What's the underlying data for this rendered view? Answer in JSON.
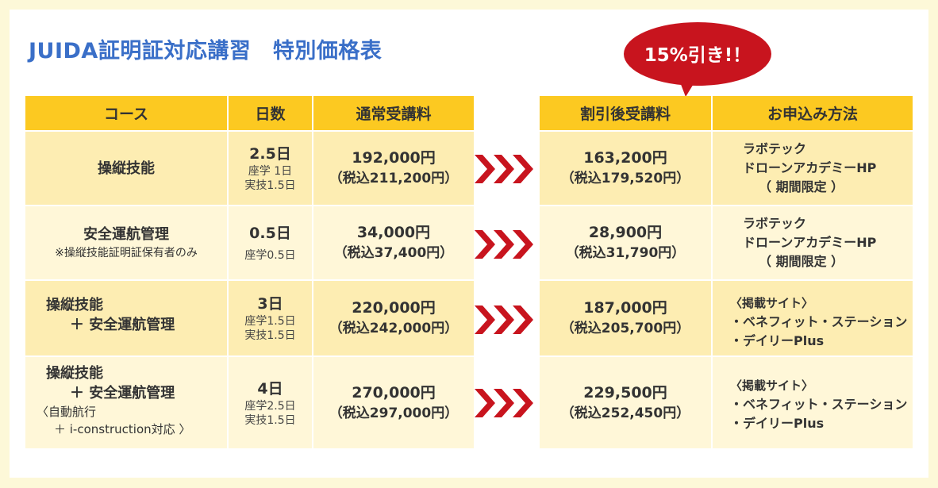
{
  "title": "JUIDA証明証対応講習　特別価格表",
  "badge": "15%引き!！",
  "headers": {
    "course": "コース",
    "days": "日数",
    "regular": "通常受講料",
    "discount": "割引後受講料",
    "method": "お申込み方法"
  },
  "rows": [
    {
      "course": [
        "操縦技能"
      ],
      "days": "2.5日",
      "days_detail": [
        "座学 1日",
        "実技1.5日"
      ],
      "regular_price": "192,000円",
      "regular_tax": "（税込211,200円）",
      "discount_price": "163,200円",
      "discount_tax": "（税込179,520円）",
      "method": [
        "ラボテック",
        "ドローンアカデミーHP",
        "（ 期間限定 ）"
      ]
    },
    {
      "course": [
        "安全運航管理"
      ],
      "note": "※操縦技能証明証保有者のみ",
      "days": "0.5日",
      "days_detail": [
        "座学0.5日"
      ],
      "regular_price": "34,000円",
      "regular_tax": "（税込37,400円）",
      "discount_price": "28,900円",
      "discount_tax": "（税込31,790円）",
      "method": [
        "ラボテック",
        "ドローンアカデミーHP",
        "（ 期間限定 ）"
      ]
    },
    {
      "course": [
        "操縦技能",
        "＋ 安全運航管理"
      ],
      "days": "3日",
      "days_detail": [
        "座学1.5日",
        "実技1.5日"
      ],
      "regular_price": "220,000円",
      "regular_tax": "（税込242,000円）",
      "discount_price": "187,000円",
      "discount_tax": "（税込205,700円）",
      "method": [
        "〈掲載サイト〉",
        "・ベネフィット・ステーション",
        "・デイリーPlus"
      ]
    },
    {
      "course": [
        "操縦技能",
        "＋ 安全運航管理"
      ],
      "course_extra": [
        "〈自動航行",
        "＋ i-construction対応 〉"
      ],
      "days": "4日",
      "days_detail": [
        "座学2.5日",
        "実技1.5日"
      ],
      "regular_price": "270,000円",
      "regular_tax": "（税込297,000円）",
      "discount_price": "229,500円",
      "discount_tax": "（税込252,450円）",
      "method": [
        "〈掲載サイト〉",
        "・ベネフィット・ステーション",
        "・デイリーPlus"
      ]
    }
  ],
  "colors": {
    "header": "#fcc921",
    "cell_dark": "#fdedb2",
    "cell_light": "#fff7d8",
    "arrow": "#c8141e",
    "bubble": "#c8141e",
    "title": "#3a6fc8"
  },
  "icons": {
    "arrow": "triple-chevron-right-icon"
  }
}
